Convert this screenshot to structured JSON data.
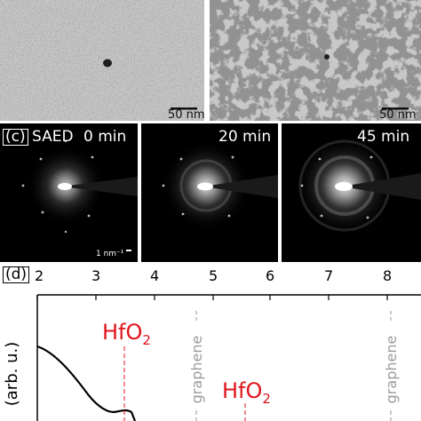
{
  "panel_ab": {
    "left_scale": "50 nm",
    "right_scale": "50 nm"
  },
  "panel_c": {
    "tag": "(c)",
    "method": "SAED",
    "times": [
      "0 min",
      "20 min",
      "45 min"
    ],
    "scale": "1 nm⁻¹"
  },
  "panel_d": {
    "tag": "(d)",
    "top_ticks": [
      "2",
      "3",
      "4",
      "5",
      "6",
      "7",
      "8"
    ],
    "ylabel": "(arb. u.)",
    "annotations": [
      {
        "text": "HfO",
        "sub": "2",
        "color": "#e0141b"
      },
      {
        "text": "HfO",
        "sub": "2",
        "color": "#e0141b"
      },
      {
        "text": "graphene",
        "color": "#9a9a9a"
      },
      {
        "text": "graphene",
        "color": "#9a9a9a"
      }
    ]
  }
}
